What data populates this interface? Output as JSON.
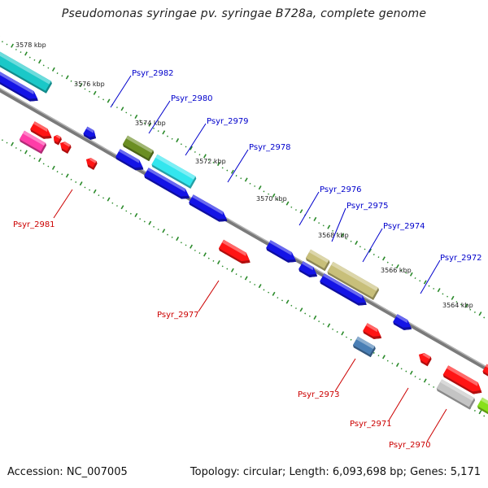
{
  "title": "Pseudomonas syringae pv. syringae B728a, complete genome",
  "footer": {
    "accession": "Accession: NC_007005",
    "summary": "Topology: circular; Length: 6,093,698 bp; Genes: 5,171"
  },
  "colors": {
    "forward_label": "#0000cc",
    "reverse_label": "#cc0000",
    "backbone": "#808080",
    "tick": "#2a8a2a"
  },
  "scale_labels": [
    "3578 kbp",
    "3576 kbp",
    "3574 kbp",
    "3572 kbp",
    "3570 kbp",
    "3568 kbp",
    "3566 kbp",
    "3564 kbp"
  ],
  "gene_labels": {
    "forward": [
      "Psyr_2982",
      "Psyr_2980",
      "Psyr_2979",
      "Psyr_2978",
      "Psyr_2976",
      "Psyr_2975",
      "Psyr_2974",
      "Psyr_2972"
    ],
    "reverse": [
      "Psyr_2981",
      "Psyr_2977",
      "Psyr_2973",
      "Psyr_2971",
      "Psyr_2970"
    ]
  }
}
